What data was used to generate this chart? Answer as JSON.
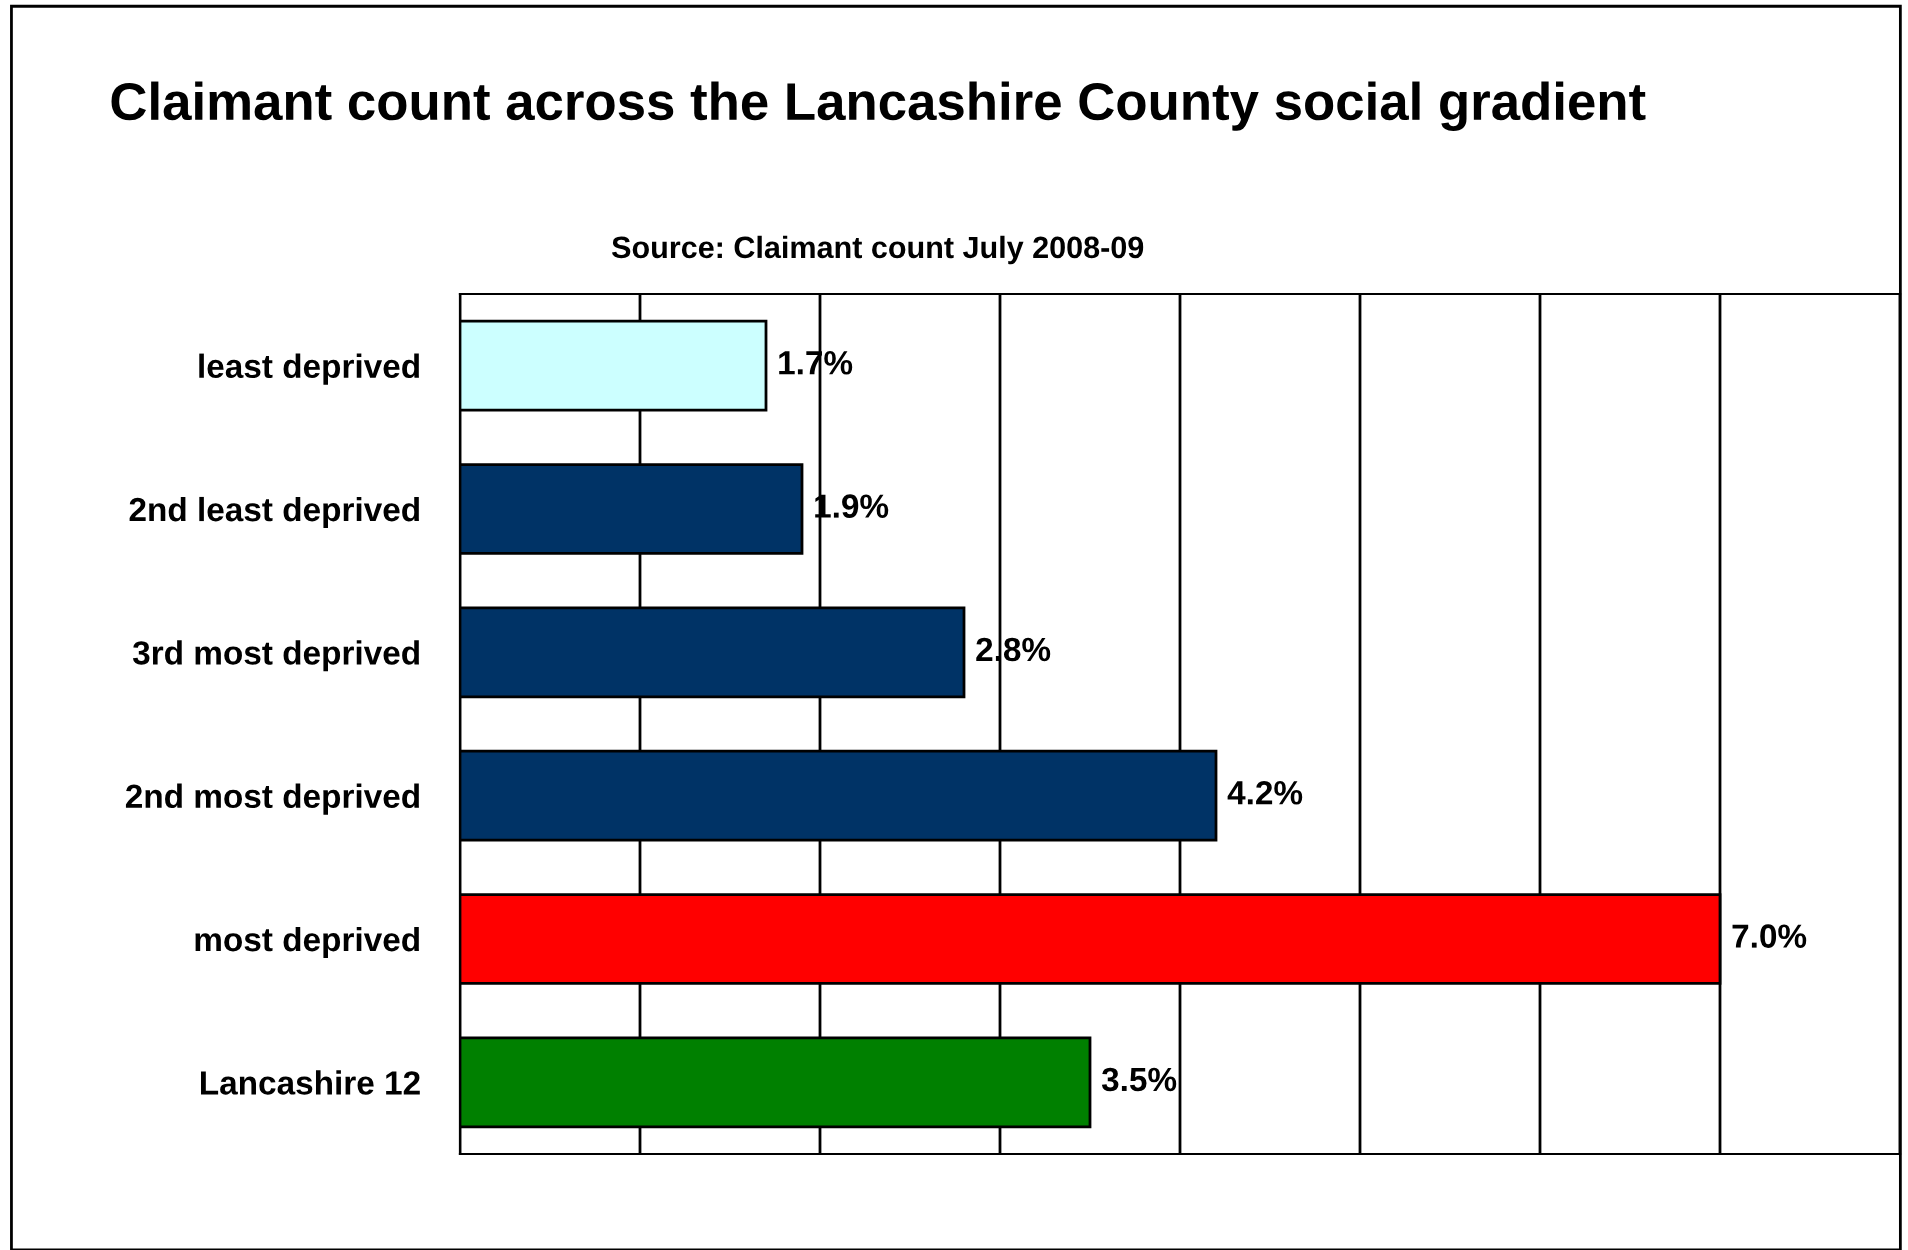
{
  "chart_data": {
    "type": "bar",
    "orientation": "horizontal",
    "title": "Claimant count across the Lancashire County social gradient",
    "subtitle": "Source: Claimant count July 2008-09",
    "categories": [
      "least deprived",
      "2nd least deprived",
      "3rd most deprived",
      "2nd most deprived",
      "most deprived",
      "Lancashire 12"
    ],
    "values": [
      1.7,
      1.9,
      2.8,
      4.2,
      7.0,
      3.5
    ],
    "value_labels": [
      "1.7%",
      "1.9%",
      "2.8%",
      "4.2%",
      "7.0%",
      "3.5%"
    ],
    "colors": [
      "#ccffff",
      "#003366",
      "#003366",
      "#003366",
      "#ff0000",
      "#008000"
    ],
    "xlim": [
      0,
      8
    ],
    "xticks": [
      {
        "value": 0,
        "label": null
      },
      {
        "value": 1,
        "label": null
      },
      {
        "value": 2,
        "label": null
      },
      {
        "value": 3,
        "label": null
      },
      {
        "value": 4,
        "label": null
      },
      {
        "value": 5,
        "label": null
      },
      {
        "value": 6,
        "label": null
      },
      {
        "value": 7,
        "label": null
      },
      {
        "value": 8,
        "label": null
      }
    ],
    "tick_labels": "y",
    "grid": "x",
    "legend": false
  }
}
